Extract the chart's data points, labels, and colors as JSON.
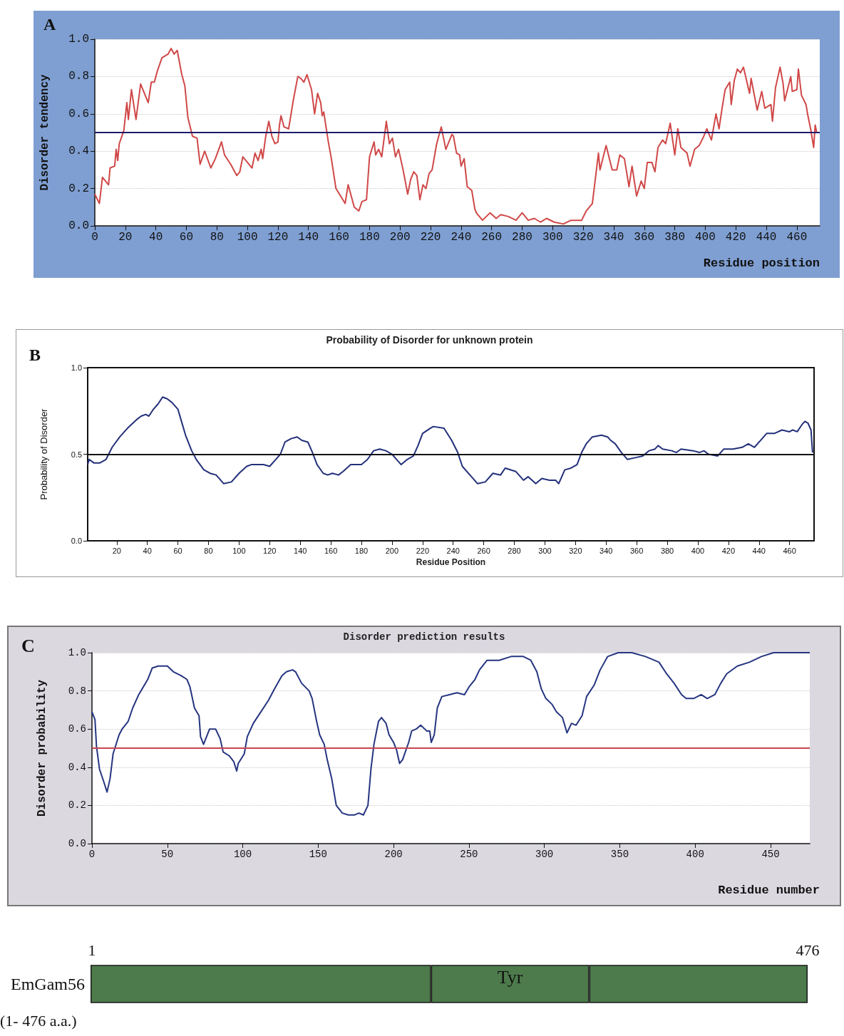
{
  "chart_data": [
    {
      "type": "line",
      "xlabel": "Residue position",
      "ylabel": "Disorder tendency",
      "annotations": [
        "A"
      ],
      "xlim": [
        0,
        475
      ],
      "xticks": [
        0,
        20,
        40,
        60,
        80,
        100,
        120,
        140,
        160,
        180,
        200,
        220,
        240,
        260,
        280,
        300,
        320,
        340,
        360,
        380,
        400,
        420,
        440,
        460
      ],
      "ylim": [
        0,
        1
      ],
      "yticks": [
        {
          "value": 0,
          "label": "0.0"
        },
        {
          "value": 0.2,
          "label": "0.2"
        },
        {
          "value": 0.4,
          "label": "0.4"
        },
        {
          "value": 0.6,
          "label": "0.6"
        },
        {
          "value": 0.8,
          "label": "0.8"
        },
        {
          "value": 1,
          "label": "1.0"
        }
      ],
      "grid": "y",
      "ref_lines": [
        {
          "axis": "y",
          "value": 0.5,
          "color": "#1c1c6a"
        }
      ],
      "series": [
        {
          "color": "#d04848",
          "x": [
            0,
            3,
            5,
            9,
            10,
            13,
            14,
            15,
            16,
            19,
            21,
            22,
            24,
            27,
            30,
            33,
            35,
            37,
            39,
            41,
            44,
            48,
            50,
            52,
            54,
            57,
            59,
            61,
            64,
            67,
            69,
            72,
            76,
            79,
            83,
            85,
            89,
            93,
            95,
            97,
            100,
            103,
            105,
            107,
            109,
            110,
            112,
            114,
            116,
            118,
            120,
            121,
            122,
            124,
            127,
            129,
            130,
            133,
            135,
            137,
            139,
            142,
            144,
            146,
            148,
            149,
            150,
            153,
            155,
            158,
            161,
            164,
            166,
            168,
            170,
            173,
            175,
            178,
            180,
            183,
            184,
            186,
            188,
            191,
            193,
            195,
            197,
            199,
            202,
            205,
            207,
            209,
            211,
            213,
            215,
            217,
            219,
            221,
            224,
            227,
            230,
            234,
            235,
            237,
            239,
            240,
            242,
            244,
            247,
            249,
            250,
            254,
            259,
            263,
            266,
            271,
            276,
            280,
            284,
            288,
            292,
            296,
            301,
            307,
            312,
            319,
            322,
            326,
            330,
            331,
            335,
            339,
            342,
            344,
            347,
            350,
            352,
            355,
            358,
            360,
            362,
            365,
            367,
            369,
            372,
            374,
            377,
            380,
            382,
            384,
            388,
            390,
            393,
            396,
            399,
            401,
            404,
            407,
            409,
            411,
            413,
            416,
            417,
            419,
            421,
            423,
            425,
            429,
            430,
            434,
            437,
            439,
            443,
            444,
            446,
            449,
            451,
            452,
            456,
            457,
            460,
            461,
            463,
            466,
            467,
            469,
            471,
            472,
            473
          ],
          "values": [
            0.17,
            0.12,
            0.26,
            0.22,
            0.31,
            0.32,
            0.41,
            0.35,
            0.44,
            0.51,
            0.66,
            0.57,
            0.73,
            0.57,
            0.76,
            0.7,
            0.66,
            0.77,
            0.77,
            0.83,
            0.9,
            0.92,
            0.95,
            0.92,
            0.94,
            0.81,
            0.75,
            0.58,
            0.48,
            0.47,
            0.33,
            0.4,
            0.31,
            0.36,
            0.45,
            0.38,
            0.33,
            0.27,
            0.29,
            0.37,
            0.34,
            0.31,
            0.39,
            0.35,
            0.41,
            0.36,
            0.48,
            0.56,
            0.48,
            0.44,
            0.45,
            0.54,
            0.59,
            0.53,
            0.52,
            0.62,
            0.67,
            0.8,
            0.79,
            0.77,
            0.81,
            0.73,
            0.6,
            0.71,
            0.66,
            0.59,
            0.61,
            0.45,
            0.36,
            0.2,
            0.16,
            0.12,
            0.22,
            0.16,
            0.1,
            0.08,
            0.13,
            0.14,
            0.37,
            0.45,
            0.38,
            0.41,
            0.37,
            0.56,
            0.44,
            0.47,
            0.37,
            0.41,
            0.3,
            0.17,
            0.25,
            0.29,
            0.27,
            0.14,
            0.22,
            0.2,
            0.28,
            0.3,
            0.44,
            0.53,
            0.41,
            0.49,
            0.48,
            0.39,
            0.38,
            0.32,
            0.36,
            0.21,
            0.19,
            0.09,
            0.07,
            0.03,
            0.07,
            0.04,
            0.06,
            0.05,
            0.03,
            0.07,
            0.03,
            0.04,
            0.02,
            0.04,
            0.02,
            0.01,
            0.03,
            0.03,
            0.08,
            0.12,
            0.39,
            0.3,
            0.43,
            0.3,
            0.3,
            0.38,
            0.36,
            0.21,
            0.32,
            0.16,
            0.24,
            0.2,
            0.34,
            0.34,
            0.29,
            0.42,
            0.46,
            0.44,
            0.55,
            0.38,
            0.52,
            0.42,
            0.39,
            0.32,
            0.41,
            0.43,
            0.48,
            0.52,
            0.46,
            0.6,
            0.52,
            0.63,
            0.73,
            0.77,
            0.65,
            0.78,
            0.84,
            0.82,
            0.85,
            0.71,
            0.79,
            0.62,
            0.72,
            0.63,
            0.65,
            0.56,
            0.74,
            0.85,
            0.76,
            0.67,
            0.8,
            0.72,
            0.73,
            0.84,
            0.7,
            0.65,
            0.6,
            0.52,
            0.42,
            0.54,
            0.5
          ]
        }
      ]
    },
    {
      "type": "line",
      "title": "Probability of Disorder for unknown protein",
      "xlabel": "Residue Position",
      "ylabel": "Probability of Disorder",
      "annotations": [
        "B"
      ],
      "xlim": [
        1,
        476
      ],
      "xticks": [
        20,
        40,
        60,
        80,
        100,
        120,
        140,
        160,
        180,
        200,
        220,
        240,
        260,
        280,
        300,
        320,
        340,
        360,
        380,
        400,
        420,
        440,
        460
      ],
      "ylim": [
        0,
        1
      ],
      "yticks": [
        {
          "value": 0,
          "label": "0.0"
        },
        {
          "value": 0.5,
          "label": "0.5"
        },
        {
          "value": 1,
          "label": "1.0"
        }
      ],
      "ref_lines": [
        {
          "axis": "y",
          "value": 0.5,
          "color": "#111111"
        }
      ],
      "series": [
        {
          "color": "#23307a",
          "x": [
            1,
            2,
            5,
            9,
            13,
            17,
            22,
            27,
            33,
            36,
            39,
            41,
            44,
            47,
            50,
            53,
            56,
            60,
            62,
            65,
            69,
            72,
            77,
            81,
            85,
            90,
            95,
            100,
            105,
            108,
            111,
            116,
            120,
            124,
            127,
            130,
            134,
            138,
            141,
            145,
            148,
            151,
            155,
            158,
            161,
            165,
            168,
            173,
            180,
            184,
            188,
            192,
            196,
            200,
            203,
            206,
            210,
            214,
            217,
            220,
            225,
            227,
            234,
            239,
            243,
            246,
            252,
            256,
            261,
            266,
            271,
            274,
            281,
            286,
            289,
            294,
            298,
            303,
            307,
            309,
            313,
            317,
            321,
            324,
            327,
            331,
            337,
            341,
            343,
            346,
            350,
            354,
            359,
            364,
            368,
            372,
            374,
            377,
            383,
            386,
            389,
            397,
            401,
            404,
            407,
            413,
            417,
            423,
            429,
            433,
            437,
            441,
            445,
            450,
            455,
            460,
            462,
            465,
            468,
            470,
            472,
            474,
            475
          ],
          "values": [
            0.44,
            0.47,
            0.45,
            0.45,
            0.47,
            0.54,
            0.6,
            0.65,
            0.7,
            0.72,
            0.73,
            0.72,
            0.76,
            0.79,
            0.83,
            0.82,
            0.8,
            0.76,
            0.7,
            0.61,
            0.52,
            0.47,
            0.41,
            0.39,
            0.38,
            0.33,
            0.34,
            0.39,
            0.43,
            0.44,
            0.44,
            0.44,
            0.43,
            0.47,
            0.5,
            0.57,
            0.59,
            0.6,
            0.58,
            0.57,
            0.51,
            0.44,
            0.39,
            0.38,
            0.39,
            0.38,
            0.4,
            0.44,
            0.44,
            0.47,
            0.52,
            0.53,
            0.52,
            0.5,
            0.47,
            0.44,
            0.47,
            0.49,
            0.55,
            0.62,
            0.65,
            0.66,
            0.65,
            0.58,
            0.51,
            0.43,
            0.37,
            0.33,
            0.34,
            0.39,
            0.38,
            0.42,
            0.4,
            0.35,
            0.37,
            0.33,
            0.36,
            0.35,
            0.35,
            0.33,
            0.41,
            0.42,
            0.44,
            0.51,
            0.56,
            0.6,
            0.61,
            0.6,
            0.58,
            0.56,
            0.51,
            0.47,
            0.48,
            0.49,
            0.52,
            0.53,
            0.55,
            0.53,
            0.52,
            0.51,
            0.53,
            0.52,
            0.51,
            0.52,
            0.5,
            0.49,
            0.53,
            0.53,
            0.54,
            0.56,
            0.54,
            0.58,
            0.62,
            0.62,
            0.64,
            0.63,
            0.64,
            0.63,
            0.67,
            0.69,
            0.68,
            0.64,
            0.51
          ]
        }
      ]
    },
    {
      "type": "line",
      "title": "Disorder prediction results",
      "xlabel": "Residue number",
      "ylabel": "Disorder probability",
      "annotations": [
        "C"
      ],
      "xlim": [
        0,
        476
      ],
      "xticks": [
        0,
        50,
        100,
        150,
        200,
        250,
        300,
        350,
        400,
        450
      ],
      "ylim": [
        0,
        1
      ],
      "yticks": [
        {
          "value": 0,
          "label": "0.0"
        },
        {
          "value": 0.2,
          "label": "0.2"
        },
        {
          "value": 0.4,
          "label": "0.4"
        },
        {
          "value": 0.6,
          "label": "0.6"
        },
        {
          "value": 0.8,
          "label": "0.8"
        },
        {
          "value": 1,
          "label": "1.0"
        }
      ],
      "grid": "y",
      "ref_lines": [
        {
          "axis": "y",
          "value": 0.5,
          "color": "#c8454f"
        }
      ],
      "series": [
        {
          "color": "#253580",
          "x": [
            0,
            2,
            3,
            5,
            8,
            10,
            12,
            14,
            18,
            20,
            24,
            27,
            31,
            34,
            37,
            40,
            44,
            50,
            54,
            59,
            63,
            65,
            68,
            71,
            72,
            74,
            76,
            78,
            82,
            85,
            87,
            91,
            94,
            96,
            97,
            101,
            103,
            107,
            112,
            117,
            121,
            126,
            129,
            133,
            135,
            139,
            144,
            146,
            149,
            151,
            154,
            156,
            159,
            162,
            166,
            170,
            174,
            177,
            180,
            183,
            185,
            187,
            190,
            192,
            195,
            197,
            200,
            202,
            204,
            206,
            210,
            212,
            215,
            218,
            222,
            224,
            225,
            227,
            229,
            232,
            237,
            242,
            247,
            250,
            254,
            257,
            262,
            270,
            278,
            286,
            291,
            295,
            298,
            301,
            305,
            308,
            312,
            315,
            318,
            321,
            325,
            328,
            333,
            337,
            342,
            349,
            358,
            367,
            376,
            381,
            386,
            391,
            394,
            399,
            404,
            408,
            413,
            417,
            421,
            428,
            436,
            444,
            452,
            476
          ],
          "values": [
            0.69,
            0.65,
            0.51,
            0.39,
            0.32,
            0.27,
            0.34,
            0.47,
            0.57,
            0.6,
            0.64,
            0.71,
            0.78,
            0.82,
            0.86,
            0.92,
            0.93,
            0.93,
            0.9,
            0.88,
            0.86,
            0.82,
            0.71,
            0.67,
            0.56,
            0.52,
            0.56,
            0.6,
            0.6,
            0.55,
            0.48,
            0.46,
            0.43,
            0.38,
            0.42,
            0.47,
            0.56,
            0.63,
            0.69,
            0.75,
            0.81,
            0.88,
            0.9,
            0.91,
            0.9,
            0.84,
            0.8,
            0.76,
            0.64,
            0.57,
            0.52,
            0.44,
            0.34,
            0.2,
            0.16,
            0.15,
            0.15,
            0.16,
            0.15,
            0.2,
            0.39,
            0.52,
            0.64,
            0.66,
            0.63,
            0.57,
            0.53,
            0.49,
            0.42,
            0.44,
            0.53,
            0.59,
            0.6,
            0.62,
            0.59,
            0.59,
            0.53,
            0.57,
            0.71,
            0.77,
            0.78,
            0.79,
            0.78,
            0.82,
            0.86,
            0.91,
            0.96,
            0.96,
            0.98,
            0.98,
            0.96,
            0.9,
            0.81,
            0.76,
            0.73,
            0.69,
            0.66,
            0.58,
            0.63,
            0.62,
            0.67,
            0.77,
            0.83,
            0.91,
            0.98,
            1.0,
            1.0,
            0.98,
            0.95,
            0.89,
            0.84,
            0.78,
            0.76,
            0.76,
            0.78,
            0.76,
            0.78,
            0.84,
            0.89,
            0.93,
            0.95,
            0.98,
            1.0,
            1.0
          ]
        }
      ]
    },
    {
      "type": "bar",
      "orientation": "horizontal",
      "stacked": true,
      "categories": [
        "EmGam56"
      ],
      "annotations": [
        "(1- 476 a.a.)"
      ],
      "xlim": [
        0,
        476
      ],
      "xticks": [
        1,
        476
      ],
      "series": [
        {
          "color": "#4d7b4c",
          "values": [
            226
          ]
        },
        {
          "color": "#4d7b4c",
          "values": [
            105
          ],
          "value_labels": [
            "Tyr"
          ]
        },
        {
          "color": "#4d7b4c",
          "values": [
            145
          ]
        }
      ]
    }
  ]
}
